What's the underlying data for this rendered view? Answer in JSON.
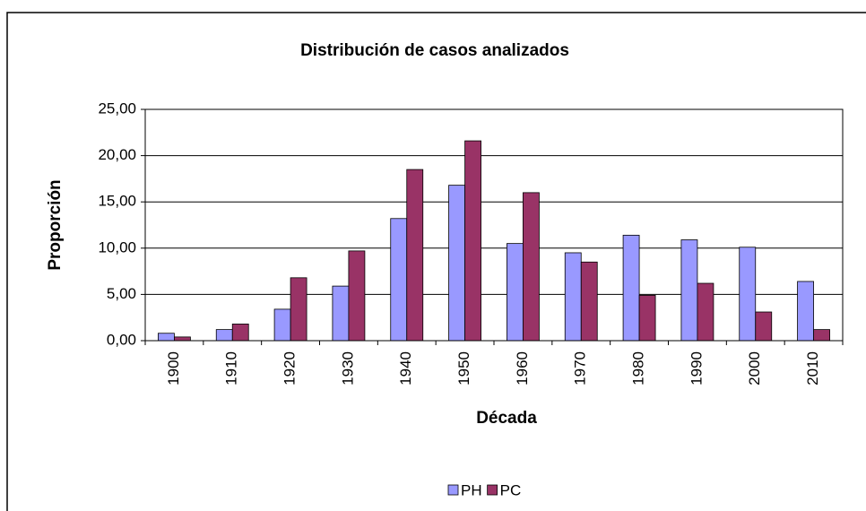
{
  "chart_data": {
    "type": "bar",
    "title": "Distribución de casos analizados",
    "x_label": "Década",
    "y_label": "Proporción",
    "categories": [
      "1900",
      "1910",
      "1920",
      "1930",
      "1940",
      "1950",
      "1960",
      "1970",
      "1980",
      "1990",
      "2000",
      "2010"
    ],
    "series": [
      {
        "name": "PH",
        "color": "#9999ff",
        "values": [
          0.8,
          1.2,
          3.4,
          5.9,
          13.2,
          16.8,
          10.5,
          9.5,
          11.4,
          10.9,
          10.1,
          6.4
        ]
      },
      {
        "name": "PC",
        "color": "#993366",
        "values": [
          0.4,
          1.8,
          6.8,
          9.7,
          18.5,
          21.6,
          16.0,
          8.5,
          4.9,
          6.2,
          3.1,
          1.2
        ]
      }
    ],
    "ylim": [
      0,
      25
    ],
    "yticks": [
      {
        "value": 0,
        "label": "0,00"
      },
      {
        "value": 5,
        "label": "5,00"
      },
      {
        "value": 10,
        "label": "10,00"
      },
      {
        "value": 15,
        "label": "15,00"
      },
      {
        "value": 20,
        "label": "20,00"
      },
      {
        "value": 25,
        "label": "25,00"
      }
    ],
    "grid": true,
    "legend": "bottom"
  }
}
